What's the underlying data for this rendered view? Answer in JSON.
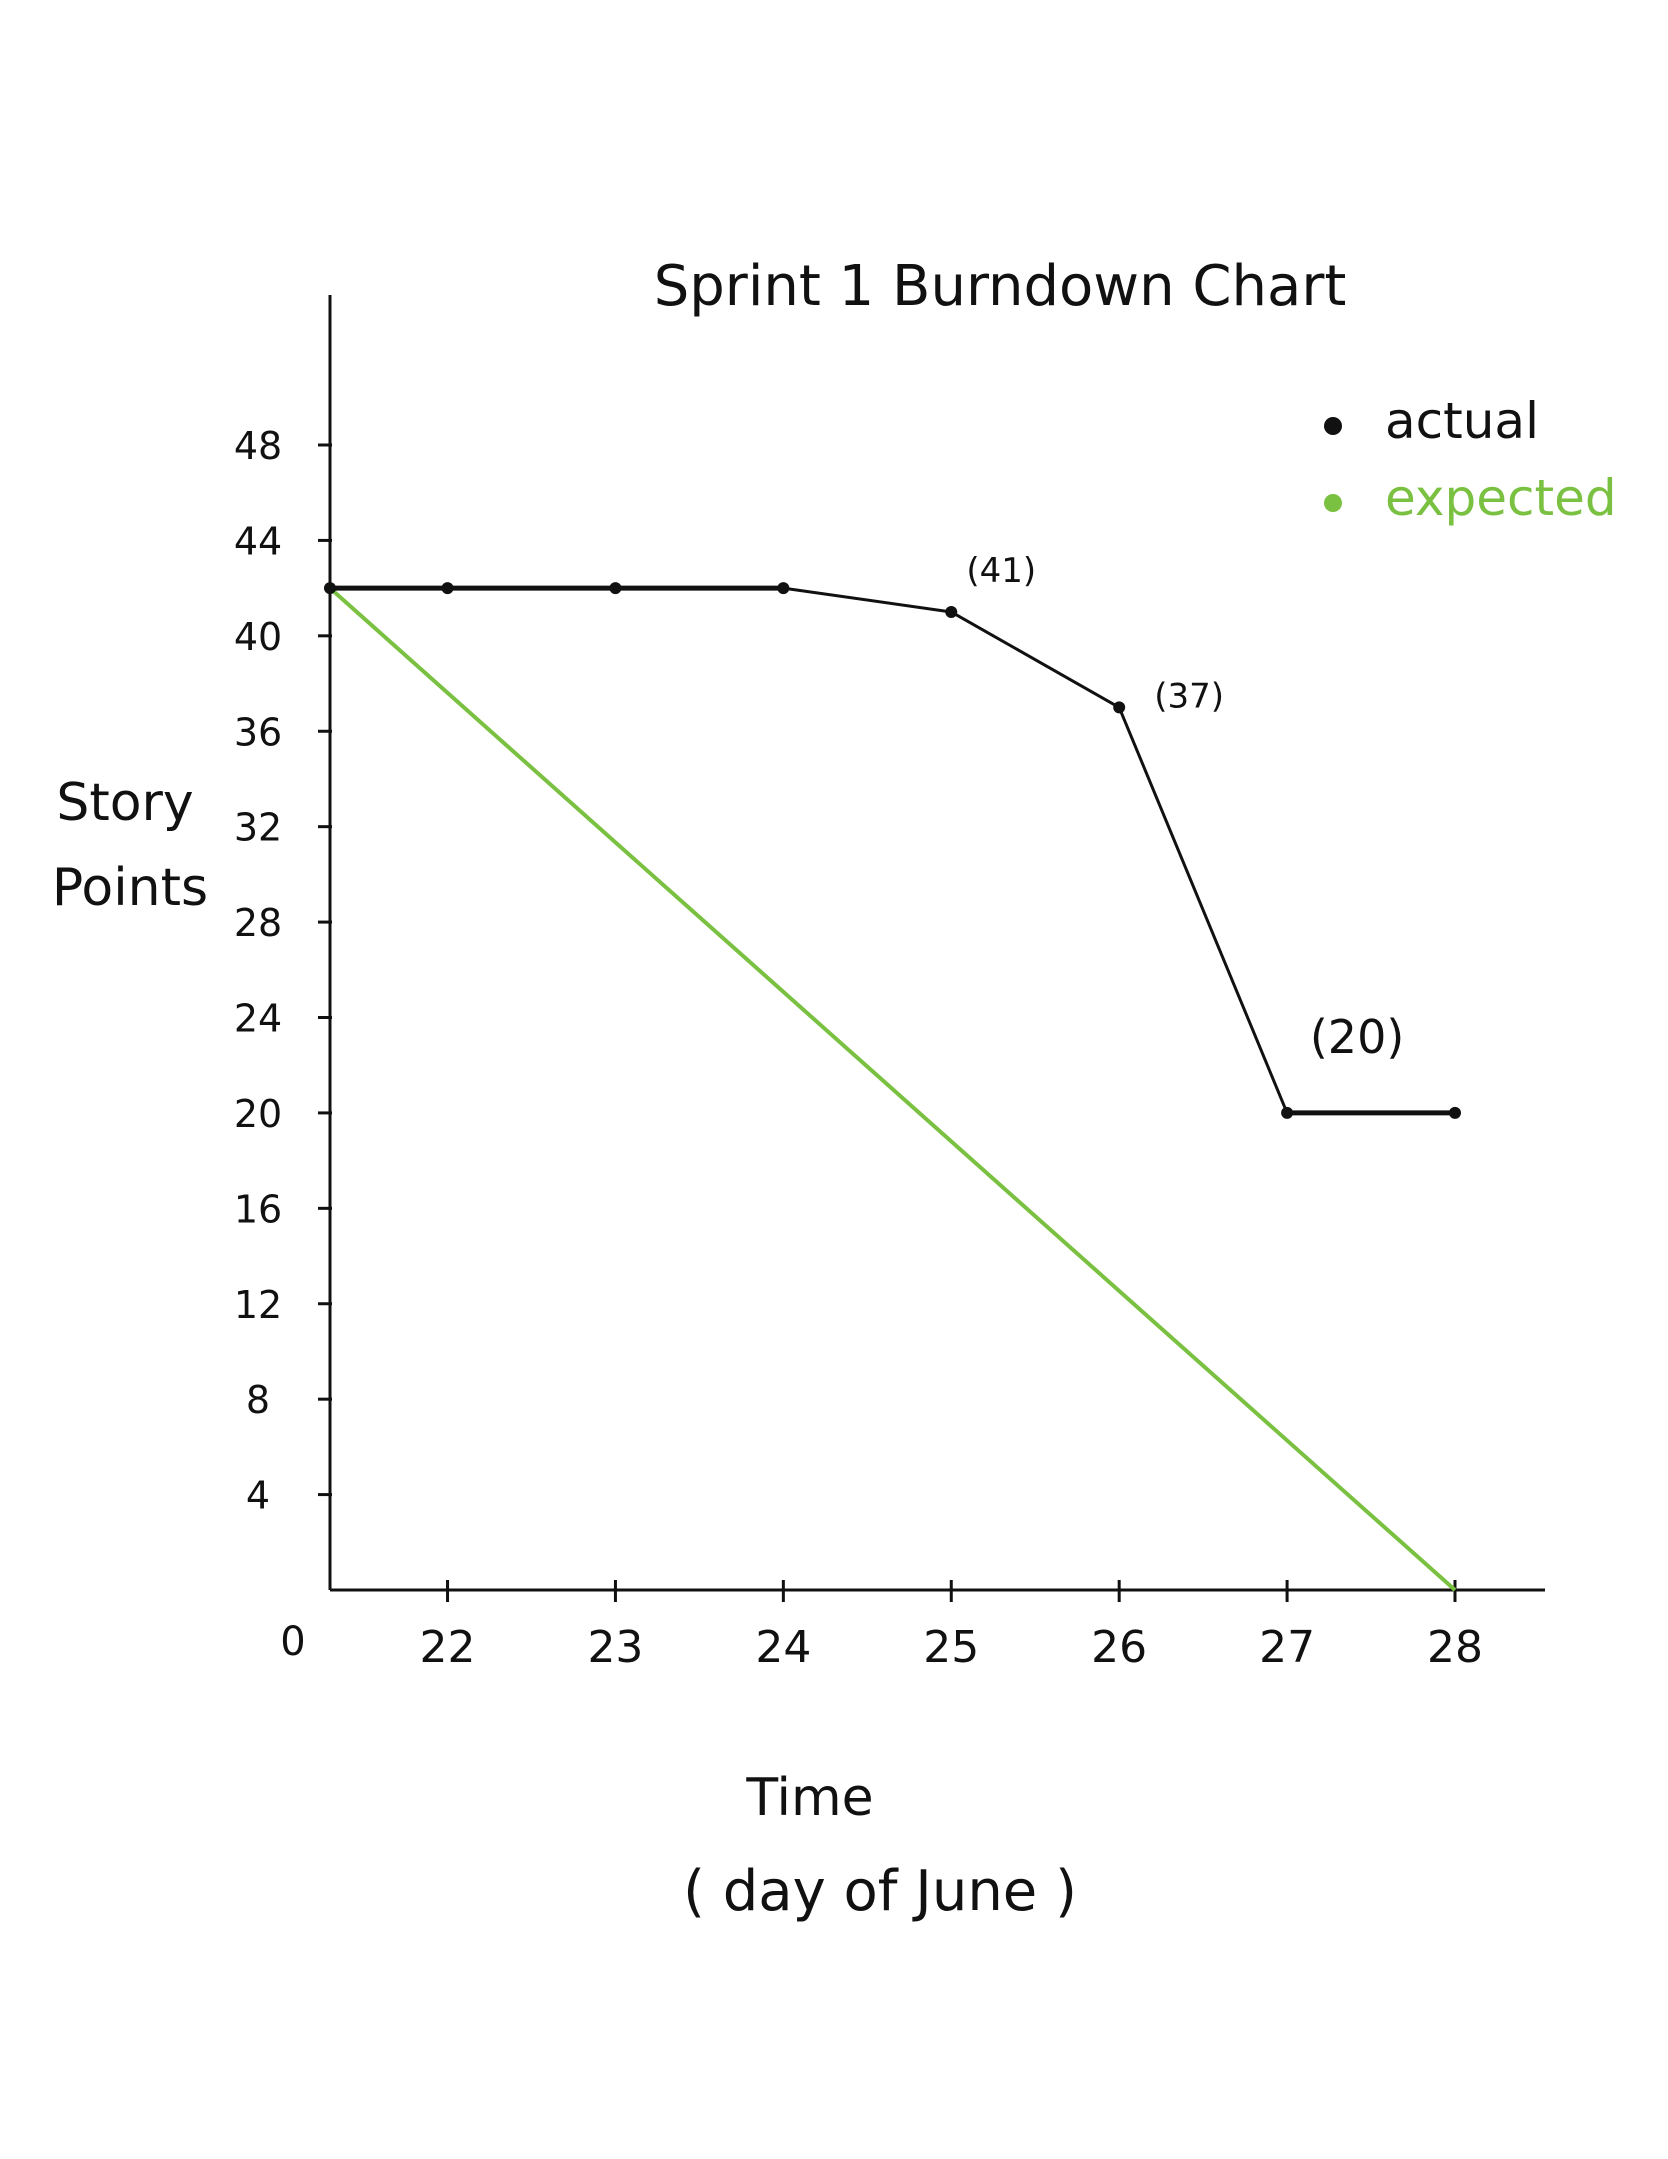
{
  "chart_data": {
    "type": "line",
    "title": "Sprint 1   Burndown Chart",
    "xlabel": "Time",
    "xlabel_sub": "( day of June )",
    "ylabel_line1": "Story",
    "ylabel_line2": "Points",
    "origin_label": "0",
    "x_ticks": [
      "22",
      "23",
      "24",
      "25",
      "26",
      "27",
      "28"
    ],
    "y_ticks": [
      "4",
      "8",
      "12",
      "16",
      "20",
      "24",
      "28",
      "32",
      "36",
      "40",
      "44",
      "48"
    ],
    "xlim": [
      21.3,
      28
    ],
    "ylim": [
      0,
      48
    ],
    "grid": false,
    "legend_position": "top-right",
    "series": [
      {
        "name": "actual",
        "color": "#111111",
        "points": [
          {
            "x": 21.3,
            "y": 42
          },
          {
            "x": 22,
            "y": 42
          },
          {
            "x": 23,
            "y": 42
          },
          {
            "x": 24,
            "y": 42
          },
          {
            "x": 25,
            "y": 41
          },
          {
            "x": 26,
            "y": 37
          },
          {
            "x": 27,
            "y": 20
          },
          {
            "x": 28,
            "y": 20
          }
        ]
      },
      {
        "name": "expected",
        "color": "#7ac142",
        "points": [
          {
            "x": 21.3,
            "y": 42
          },
          {
            "x": 28,
            "y": 0
          }
        ]
      }
    ],
    "annotations": [
      {
        "text": "(41)",
        "x": 25,
        "y": 41
      },
      {
        "text": "(37)",
        "x": 26,
        "y": 37
      },
      {
        "text": "(20)",
        "x": 27,
        "y": 20
      }
    ]
  }
}
